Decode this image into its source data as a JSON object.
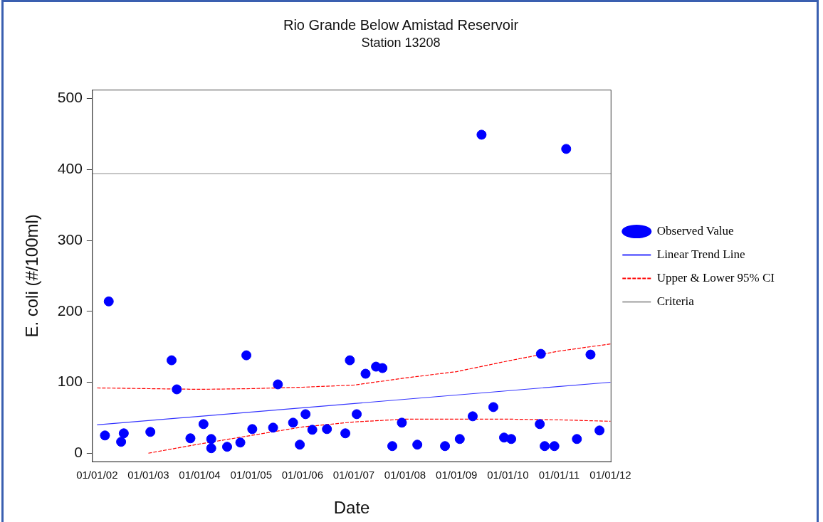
{
  "chart_data": {
    "type": "scatter",
    "title": "Rio Grande Below Amistad Reservoir",
    "subtitle": "Station 13208",
    "xlabel": "Date",
    "ylabel": "E. coli (#/100ml)",
    "xlim": [
      "2001-11-29",
      "2012-01-05"
    ],
    "ylim": [
      -12,
      512
    ],
    "xticks": [
      {
        "value": "2002-01-01",
        "label": "01/01/02"
      },
      {
        "value": "2003-01-01",
        "label": "01/01/03"
      },
      {
        "value": "2004-01-01",
        "label": "01/01/04"
      },
      {
        "value": "2005-01-01",
        "label": "01/01/05"
      },
      {
        "value": "2006-01-01",
        "label": "01/01/06"
      },
      {
        "value": "2007-01-01",
        "label": "01/01/07"
      },
      {
        "value": "2008-01-01",
        "label": "01/01/08"
      },
      {
        "value": "2009-01-01",
        "label": "01/01/09"
      },
      {
        "value": "2010-01-01",
        "label": "01/01/10"
      },
      {
        "value": "2011-01-01",
        "label": "01/01/11"
      },
      {
        "value": "2012-01-01",
        "label": "01/01/12"
      }
    ],
    "yticks": [
      0,
      100,
      200,
      300,
      400,
      500
    ],
    "legend": "right",
    "ref_lines": [
      {
        "axis": "y",
        "value": 394,
        "label": "Criteria",
        "color": "#a0a0a0"
      }
    ],
    "series": [
      {
        "name": "Observed Value",
        "marker": "circle",
        "color": "#0000ff",
        "x": [
          "2002-02-26",
          "2002-03-25",
          "2002-06-21",
          "2002-07-10",
          "2003-01-15",
          "2003-06-15",
          "2003-07-22",
          "2003-10-27",
          "2004-01-28",
          "2004-03-23",
          "2004-03-23",
          "2004-07-14",
          "2004-10-16",
          "2004-11-28",
          "2005-01-09",
          "2005-06-06",
          "2005-07-10",
          "2005-10-26",
          "2005-12-13",
          "2006-01-23",
          "2006-03-12",
          "2006-06-24",
          "2006-11-02",
          "2006-12-04",
          "2007-01-22",
          "2007-03-26",
          "2007-06-08",
          "2007-07-24",
          "2007-10-02",
          "2007-12-09",
          "2008-03-28",
          "2008-10-11",
          "2009-01-24",
          "2009-04-26",
          "2009-06-28",
          "2009-09-20",
          "2009-12-05",
          "2010-01-25",
          "2010-08-16",
          "2010-08-24",
          "2010-09-20",
          "2010-11-28",
          "2011-02-20",
          "2011-05-07",
          "2011-08-12",
          "2011-10-15"
        ],
        "values": [
          25,
          214,
          16,
          28,
          30,
          131,
          90,
          21,
          41,
          20,
          7,
          9,
          15,
          138,
          34,
          36,
          97,
          43,
          12,
          55,
          33,
          34,
          28,
          131,
          55,
          112,
          122,
          120,
          10,
          43,
          12,
          10,
          20,
          52,
          449,
          65,
          22,
          20,
          41,
          140,
          10,
          10,
          429,
          20,
          139,
          32
        ]
      },
      {
        "name": "Linear Trend Line",
        "type": "line",
        "color": "#3333ff",
        "x": [
          "2002-01-01",
          "2012-01-01"
        ],
        "values": [
          40,
          100
        ]
      },
      {
        "name": "Upper & Lower 95% CI",
        "type": "line",
        "line_style": "dashed",
        "color": "#ff0000",
        "x": [
          "2002-01-01",
          "2003-01-01",
          "2004-01-01",
          "2005-01-01",
          "2006-01-01",
          "2007-01-01",
          "2008-01-01",
          "2009-01-01",
          "2010-01-01",
          "2011-01-01",
          "2012-01-01"
        ],
        "values": [
          92,
          91,
          90,
          91,
          93,
          96,
          106,
          115,
          130,
          144,
          154
        ]
      },
      {
        "type": "line",
        "line_style": "dashed",
        "color": "#ff0000",
        "x": [
          "2003-01-01",
          "2004-01-01",
          "2005-01-01",
          "2006-01-01",
          "2007-01-01",
          "2008-01-01",
          "2009-01-01",
          "2010-01-01",
          "2011-01-01",
          "2012-01-01"
        ],
        "values": [
          0,
          13,
          25,
          37,
          44,
          48,
          48,
          48,
          47,
          45
        ]
      }
    ]
  }
}
